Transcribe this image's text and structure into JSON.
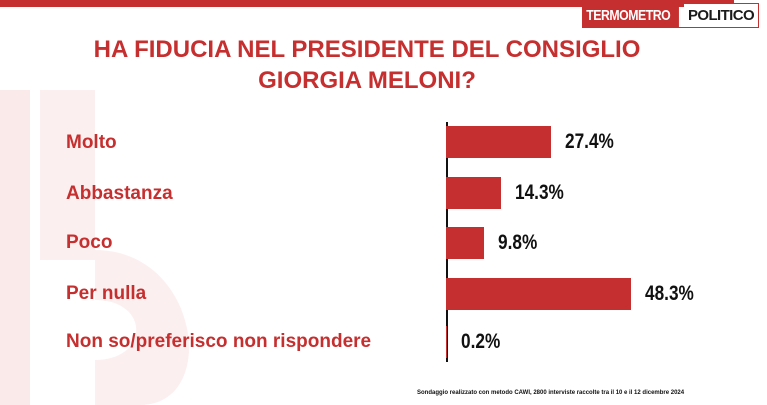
{
  "brand": {
    "logo_part1": "TERMOMETRO",
    "logo_part2": "POLITICO",
    "accent_color": "#c62f2f"
  },
  "title_lines": [
    "HA FIDUCIA NEL PRESIDENTE DEL CONSIGLIO",
    "GIORGIA MELONI?"
  ],
  "footnote": "Sondaggio realizzato con metodo CAWI, 2800 interviste raccolte tra il 10 e il 12 dicembre 2024",
  "chart_data": {
    "type": "bar",
    "orientation": "horizontal",
    "title": "HA FIDUCIA NEL PRESIDENTE DEL CONSIGLIO GIORGIA MELONI?",
    "categories": [
      "Molto",
      "Abbastanza",
      "Poco",
      "Per nulla",
      "Non so/preferisco non rispondere"
    ],
    "values": [
      27.4,
      14.3,
      9.8,
      48.3,
      0.2
    ],
    "value_labels": [
      "27.4%",
      "14.3%",
      "9.8%",
      "48.3%",
      "0.2%"
    ],
    "xlim": [
      0,
      50
    ],
    "grid": false,
    "legend": "none"
  }
}
